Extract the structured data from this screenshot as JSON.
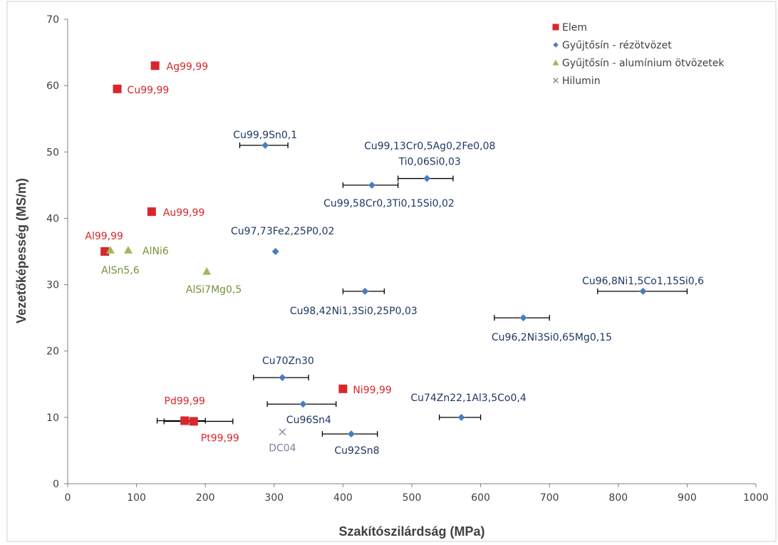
{
  "chart_data": {
    "type": "scatter",
    "xlabel": "Szakítószilárdság (MPa)",
    "ylabel": "Vezetőképesség (MS/m)",
    "xlim": [
      0,
      1000
    ],
    "ylim": [
      0,
      70
    ],
    "x_ticks": [
      "0",
      "100",
      "200",
      "300",
      "400",
      "500",
      "600",
      "700",
      "800",
      "900",
      "1000"
    ],
    "y_ticks": [
      "0",
      "10",
      "20",
      "30",
      "40",
      "50",
      "60",
      "70"
    ],
    "grid": false,
    "legend_position": "top-right",
    "colors": {
      "elem": "#d9262c",
      "copper": "#4a7ebb",
      "aluminium": "#9bbb59",
      "hilumin": "#7f7f9f",
      "copper_text": "#1f3864",
      "aluminium_text": "#76923c",
      "errorbar": "#000000",
      "axis": "#808080"
    },
    "series": [
      {
        "name": "Elem",
        "marker": "square",
        "points": [
          {
            "label": "Ag99,99",
            "x": 127,
            "y": 63
          },
          {
            "label": "Cu99,99",
            "x": 72,
            "y": 59.5
          },
          {
            "label": "Au99,99",
            "x": 122,
            "y": 41
          },
          {
            "label": "Al99,99",
            "x": 54,
            "y": 35
          },
          {
            "label": "Ni99,99",
            "x": 400,
            "y": 14.3
          },
          {
            "label": "Pd99,99",
            "x": 170,
            "y": 9.5,
            "xerr": [
              130,
              200
            ]
          },
          {
            "label": "Pt99,99",
            "x": 183,
            "y": 9.4,
            "xerr": [
              140,
              240
            ]
          }
        ]
      },
      {
        "name": "Gyűjtősín - rézötvözet",
        "marker": "diamond",
        "points": [
          {
            "label": "Cu99,9Sn0,1",
            "x": 287,
            "y": 51,
            "xerr": [
              250,
              320
            ]
          },
          {
            "label": "Cu99,13Cr0,5Ag0,2Fe0,08 Ti0,06Si0,03",
            "x": 522,
            "y": 46,
            "xerr": [
              480,
              560
            ]
          },
          {
            "label": "Cu99,58Cr0,3Ti0,15Si0,02",
            "x": 442,
            "y": 45,
            "xerr": [
              400,
              480
            ]
          },
          {
            "label": "Cu97,73Fe2,25P0,02",
            "x": 302,
            "y": 35
          },
          {
            "label": "Cu96,8Ni1,5Co1,15Si0,6",
            "x": 836,
            "y": 29,
            "xerr": [
              770,
              900
            ]
          },
          {
            "label": "Cu98,42Ni1,3Si0,25P0,03",
            "x": 432,
            "y": 29,
            "xerr": [
              400,
              460
            ]
          },
          {
            "label": "Cu96,2Ni3Si0,65Mg0,15",
            "x": 662,
            "y": 25,
            "xerr": [
              620,
              700
            ]
          },
          {
            "label": "Cu70Zn30",
            "x": 312,
            "y": 16,
            "xerr": [
              270,
              350
            ]
          },
          {
            "label": "Cu96Sn4",
            "x": 342,
            "y": 12,
            "xerr": [
              290,
              390
            ]
          },
          {
            "label": "Cu74Zn22,1Al3,5Co0,4",
            "x": 572,
            "y": 10,
            "xerr": [
              540,
              600
            ]
          },
          {
            "label": "Cu92Sn8",
            "x": 412,
            "y": 7.5,
            "xerr": [
              370,
              450
            ]
          }
        ]
      },
      {
        "name": "Gyűjtősín - alumínium ötvözetek",
        "marker": "triangle",
        "points": [
          {
            "label": "AlSn5,6",
            "x": 62,
            "y": 35.2
          },
          {
            "label": "AlNi6",
            "x": 88,
            "y": 35.2
          },
          {
            "label": "AlSi7Mg0,5",
            "x": 202,
            "y": 32
          }
        ]
      },
      {
        "name": "Hilumin",
        "marker": "cross",
        "points": [
          {
            "label": "DC04",
            "x": 312,
            "y": 7.8
          }
        ]
      }
    ]
  }
}
